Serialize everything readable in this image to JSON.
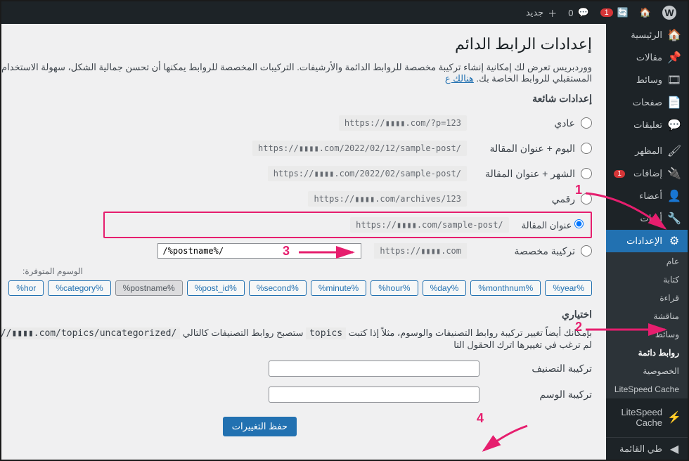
{
  "colors": {
    "accent": "#2271b1",
    "highlight": "#e61e6e",
    "adminbar_bg": "#1d2327",
    "sidebar_bg": "#1d2327",
    "submenu_bg": "#2c3338",
    "code_bg": "#eaeaea"
  },
  "adminbar": {
    "comments_count": "0",
    "new_label": "جديد",
    "updates_count": "1"
  },
  "sidebar": {
    "items": [
      {
        "icon": "🏠",
        "label": "الرئيسية"
      },
      {
        "icon": "📌",
        "label": "مقالات"
      },
      {
        "icon": "🎞",
        "label": "وسائط"
      },
      {
        "icon": "📄",
        "label": "صفحات"
      },
      {
        "icon": "💬",
        "label": "تعليقات"
      },
      {
        "icon": "🖌",
        "label": "المظهر"
      },
      {
        "icon": "🔌",
        "label": "إضافات",
        "badge": "1"
      },
      {
        "icon": "👤",
        "label": "أعضاء"
      },
      {
        "icon": "🔧",
        "label": "أدوات"
      },
      {
        "icon": "⚙",
        "label": "الإعدادات",
        "active": true
      },
      {
        "icon": "⚡",
        "label": "LiteSpeed Cache"
      },
      {
        "icon": "◀",
        "label": "طي القائمة"
      }
    ],
    "submenu": [
      {
        "label": "عام"
      },
      {
        "label": "كتابة"
      },
      {
        "label": "قراءة"
      },
      {
        "label": "مناقشة"
      },
      {
        "label": "وسائط"
      },
      {
        "label": "روابط دائمة",
        "current": true
      },
      {
        "label": "الخصوصية"
      },
      {
        "label": "LiteSpeed Cache"
      }
    ]
  },
  "page": {
    "title": "إعدادات الرابط الدائم",
    "description_pre": "ووردبريس تعرض لك إمكانية إنشاء تركيبة مخصصة للروابط الدائمة والأرشيفات. التركيبات المخصصة للروابط يمكنها أن تحسن جمالية الشكل، سهولة الاستخدام، والتوافق المستقبلي للروابط الخاصة بك. ",
    "description_link": "هنالك ع",
    "common_heading": "إعدادات شائعة",
    "options": [
      {
        "label": "عادي",
        "example": "https://▮▮▮▮.com/?p=123"
      },
      {
        "label": "اليوم + عنوان المقالة",
        "example": "https://▮▮▮▮.com/2022/02/12/sample-post/"
      },
      {
        "label": "الشهر + عنوان المقالة",
        "example": "https://▮▮▮▮.com/2022/02/sample-post/"
      },
      {
        "label": "رقمي",
        "example": "https://▮▮▮▮.com/archives/123"
      },
      {
        "label": "عنوان المقالة",
        "example": "https://▮▮▮▮.com/sample-post/",
        "selected": true
      },
      {
        "label": "تركيبة مخصصة"
      }
    ],
    "custom": {
      "prefix": "https://▮▮▮▮.com",
      "value": "/%postname%/"
    },
    "available_label": "الوسوم المتوفرة:",
    "tags": [
      {
        "label": "%year%"
      },
      {
        "label": "%monthnum%"
      },
      {
        "label": "%day%"
      },
      {
        "label": "%hour%"
      },
      {
        "label": "%minute%"
      },
      {
        "label": "%second%"
      },
      {
        "label": "%post_id%"
      },
      {
        "label": "%postname%",
        "selected": true
      },
      {
        "label": "%category%"
      },
      {
        "label": "hor%"
      }
    ],
    "optional_heading": "اختياري",
    "optional_desc_1": "بإمكانك أيضاً تغيير تركيبة روابط التصنيفات والوسوم، مثلاً إذا كتبت ",
    "optional_code_1": "topics",
    "optional_desc_2": " ستصبح روابط التصنيفات كالتالي ",
    "optional_code_2": "https://▮▮▮▮.com/topics/uncategorized/",
    "optional_desc_3": " . إذا لم ترغب في تغييرها اترك الحقول التا",
    "category_base_label": "تركيبة التصنيف",
    "tag_base_label": "تركيبة الوسم",
    "save_label": "حفظ التغييرات"
  },
  "annotations": {
    "n1": "1",
    "n2": "2",
    "n3": "3",
    "n4": "4"
  }
}
